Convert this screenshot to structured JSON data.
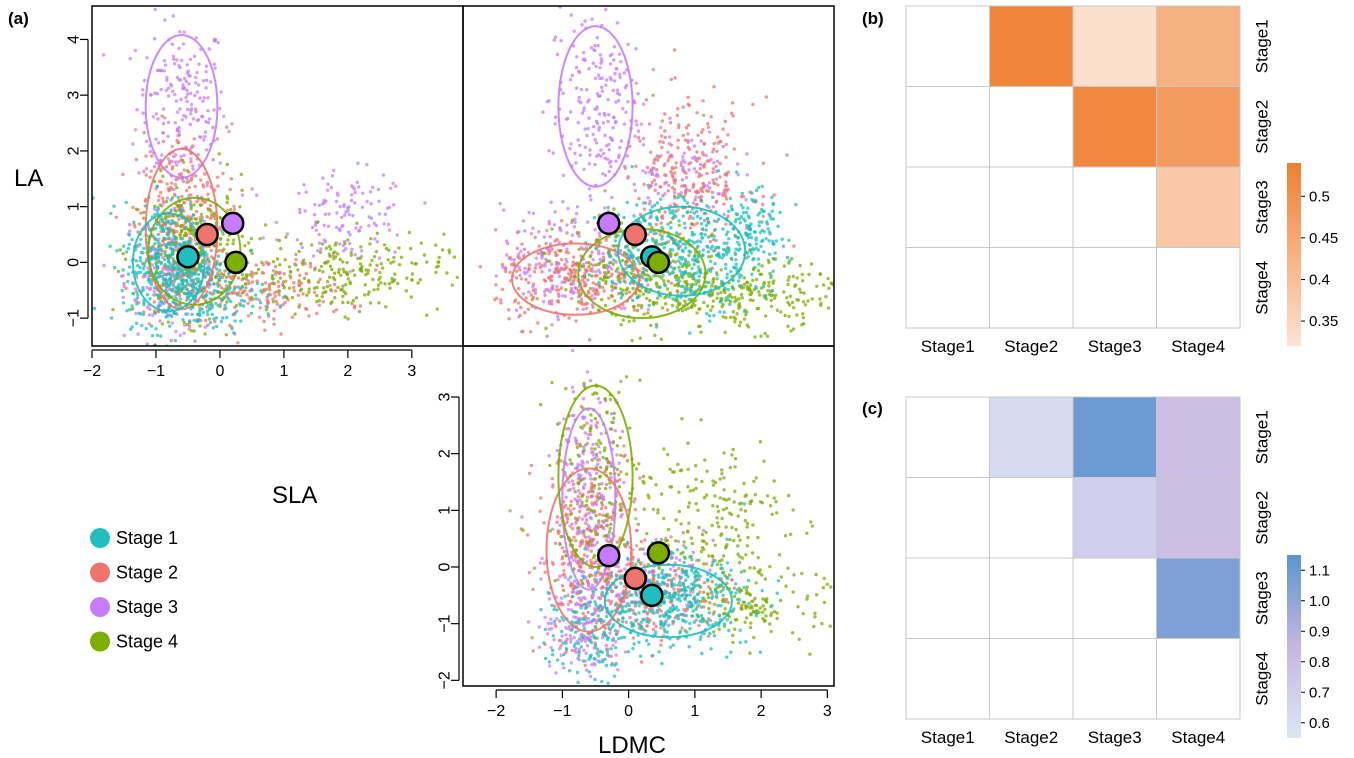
{
  "panel_labels": {
    "a": "(a)",
    "b": "(b)",
    "c": "(c)"
  },
  "var_labels": {
    "la": "LA",
    "sla": "SLA",
    "ldmc": "LDMC"
  },
  "colors": {
    "stage1": "#1fbfbf",
    "stage2": "#f0746e",
    "stage3": "#c77cff",
    "stage4": "#7cae00",
    "orange": "#ef7f32",
    "blue": "#5b95d0"
  },
  "legend": [
    {
      "label": "Stage 1",
      "color": "#1fbfbf"
    },
    {
      "label": "Stage 2",
      "color": "#f0746e"
    },
    {
      "label": "Stage 3",
      "color": "#c77cff"
    },
    {
      "label": "Stage 4",
      "color": "#7cae00"
    }
  ],
  "chart_data": [
    {
      "type": "scatter",
      "panel": "a-SLA-vs-LA",
      "xlabel": "SLA",
      "ylabel": "LA",
      "xlim": [
        -2,
        3.8
      ],
      "ylim": [
        -1.5,
        4.6
      ],
      "xticks": [
        -2,
        -1,
        0,
        1,
        2,
        3
      ],
      "xtick_labels": [
        "−2",
        "−1",
        "0",
        "1",
        "2",
        "3"
      ],
      "yticks": [
        -1,
        0,
        1,
        2,
        3,
        4
      ],
      "ytick_labels": [
        "−1",
        "0",
        "1",
        "2",
        "3",
        "4"
      ],
      "centroids": [
        {
          "stage": "Stage 1",
          "x": -0.5,
          "y": 0.1
        },
        {
          "stage": "Stage 2",
          "x": -0.2,
          "y": 0.5
        },
        {
          "stage": "Stage 3",
          "x": 0.2,
          "y": 0.7
        },
        {
          "stage": "Stage 4",
          "x": 0.25,
          "y": 0.0
        }
      ]
    },
    {
      "type": "scatter",
      "panel": "a-LDMC-vs-LA",
      "xlabel": "LDMC",
      "ylabel": "LA",
      "xlim": [
        -2.5,
        3.1
      ],
      "ylim": [
        -1.5,
        4.6
      ],
      "centroids": [
        {
          "stage": "Stage 1",
          "x": 0.35,
          "y": 0.1
        },
        {
          "stage": "Stage 2",
          "x": 0.1,
          "y": 0.5
        },
        {
          "stage": "Stage 3",
          "x": -0.3,
          "y": 0.7
        },
        {
          "stage": "Stage 4",
          "x": 0.45,
          "y": 0.0
        }
      ]
    },
    {
      "type": "scatter",
      "panel": "a-LDMC-vs-SLA",
      "xlabel": "LDMC",
      "ylabel": "SLA",
      "xlim": [
        -2.5,
        3.1
      ],
      "ylim": [
        -2.1,
        3.9
      ],
      "xticks": [
        -2,
        -1,
        0,
        1,
        2,
        3
      ],
      "xtick_labels": [
        "−2",
        "−1",
        "0",
        "1",
        "2",
        "3"
      ],
      "yticks": [
        -2,
        -1,
        0,
        1,
        2,
        3
      ],
      "ytick_labels": [
        "−2",
        "−1",
        "0",
        "1",
        "2",
        "3"
      ],
      "centroids": [
        {
          "stage": "Stage 1",
          "x": 0.35,
          "y": -0.5
        },
        {
          "stage": "Stage 2",
          "x": 0.1,
          "y": -0.2
        },
        {
          "stage": "Stage 3",
          "x": -0.3,
          "y": 0.2
        },
        {
          "stage": "Stage 4",
          "x": 0.45,
          "y": 0.25
        }
      ]
    },
    {
      "type": "heatmap",
      "panel": "b",
      "columns": [
        "Stage1",
        "Stage2",
        "Stage3",
        "Stage4"
      ],
      "rows": [
        "Stage1",
        "Stage2",
        "Stage3",
        "Stage4"
      ],
      "values": [
        [
          null,
          0.53,
          0.33,
          0.43
        ],
        [
          null,
          null,
          0.52,
          0.48
        ],
        [
          null,
          null,
          null,
          0.38
        ],
        [
          null,
          null,
          null,
          null
        ]
      ],
      "colorbar": {
        "min": 0.32,
        "max": 0.54,
        "ticks": [
          0.35,
          0.4,
          0.45,
          0.5
        ],
        "tick_labels": [
          "0.35",
          "0.4",
          "0.45",
          "0.5"
        ]
      }
    },
    {
      "type": "heatmap",
      "panel": "c",
      "columns": [
        "Stage1",
        "Stage2",
        "Stage3",
        "Stage4"
      ],
      "rows": [
        "Stage1",
        "Stage2",
        "Stage3",
        "Stage4"
      ],
      "values": [
        [
          null,
          0.62,
          1.1,
          0.8
        ],
        [
          null,
          null,
          0.7,
          0.8
        ],
        [
          null,
          null,
          null,
          1.05
        ],
        [
          null,
          null,
          null,
          null
        ]
      ],
      "colorbar": {
        "min": 0.55,
        "max": 1.15,
        "ticks": [
          0.6,
          0.7,
          0.8,
          0.9,
          1.0,
          1.1
        ],
        "tick_labels": [
          "0.6",
          "0.7",
          "0.8",
          "0.9",
          "1.0",
          "1.1"
        ]
      }
    }
  ]
}
